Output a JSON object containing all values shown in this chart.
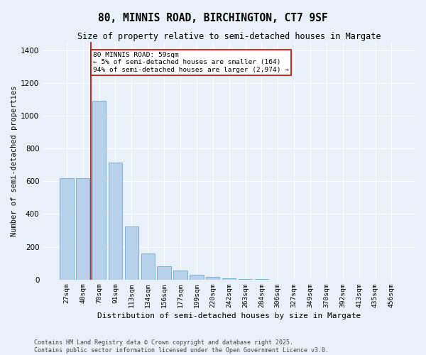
{
  "title": "80, MINNIS ROAD, BIRCHINGTON, CT7 9SF",
  "subtitle": "Size of property relative to semi-detached houses in Margate",
  "xlabel": "Distribution of semi-detached houses by size in Margate",
  "ylabel": "Number of semi-detached properties",
  "categories": [
    "27sqm",
    "48sqm",
    "70sqm",
    "91sqm",
    "113sqm",
    "134sqm",
    "156sqm",
    "177sqm",
    "199sqm",
    "220sqm",
    "242sqm",
    "263sqm",
    "284sqm",
    "306sqm",
    "327sqm",
    "349sqm",
    "370sqm",
    "392sqm",
    "413sqm",
    "435sqm",
    "456sqm"
  ],
  "values": [
    620,
    620,
    1090,
    715,
    325,
    160,
    80,
    55,
    30,
    15,
    8,
    5,
    3,
    0,
    0,
    0,
    0,
    0,
    0,
    0,
    0
  ],
  "bar_color": "#b8d0ea",
  "bar_edge_color": "#6aaad4",
  "background_color": "#e8f0fa",
  "grid_color": "#ffffff",
  "vline_x_index": 1.5,
  "vline_color": "#cc0000",
  "annotation_text": "80 MINNIS ROAD: 59sqm\n← 5% of semi-detached houses are smaller (164)\n94% of semi-detached houses are larger (2,974) →",
  "annotation_box_color": "#ffffff",
  "annotation_box_edge": "#cc0000",
  "ylim": [
    0,
    1450
  ],
  "yticks": [
    0,
    200,
    400,
    600,
    800,
    1000,
    1200,
    1400
  ],
  "footer_line1": "Contains HM Land Registry data © Crown copyright and database right 2025.",
  "footer_line2": "Contains public sector information licensed under the Open Government Licence v3.0."
}
